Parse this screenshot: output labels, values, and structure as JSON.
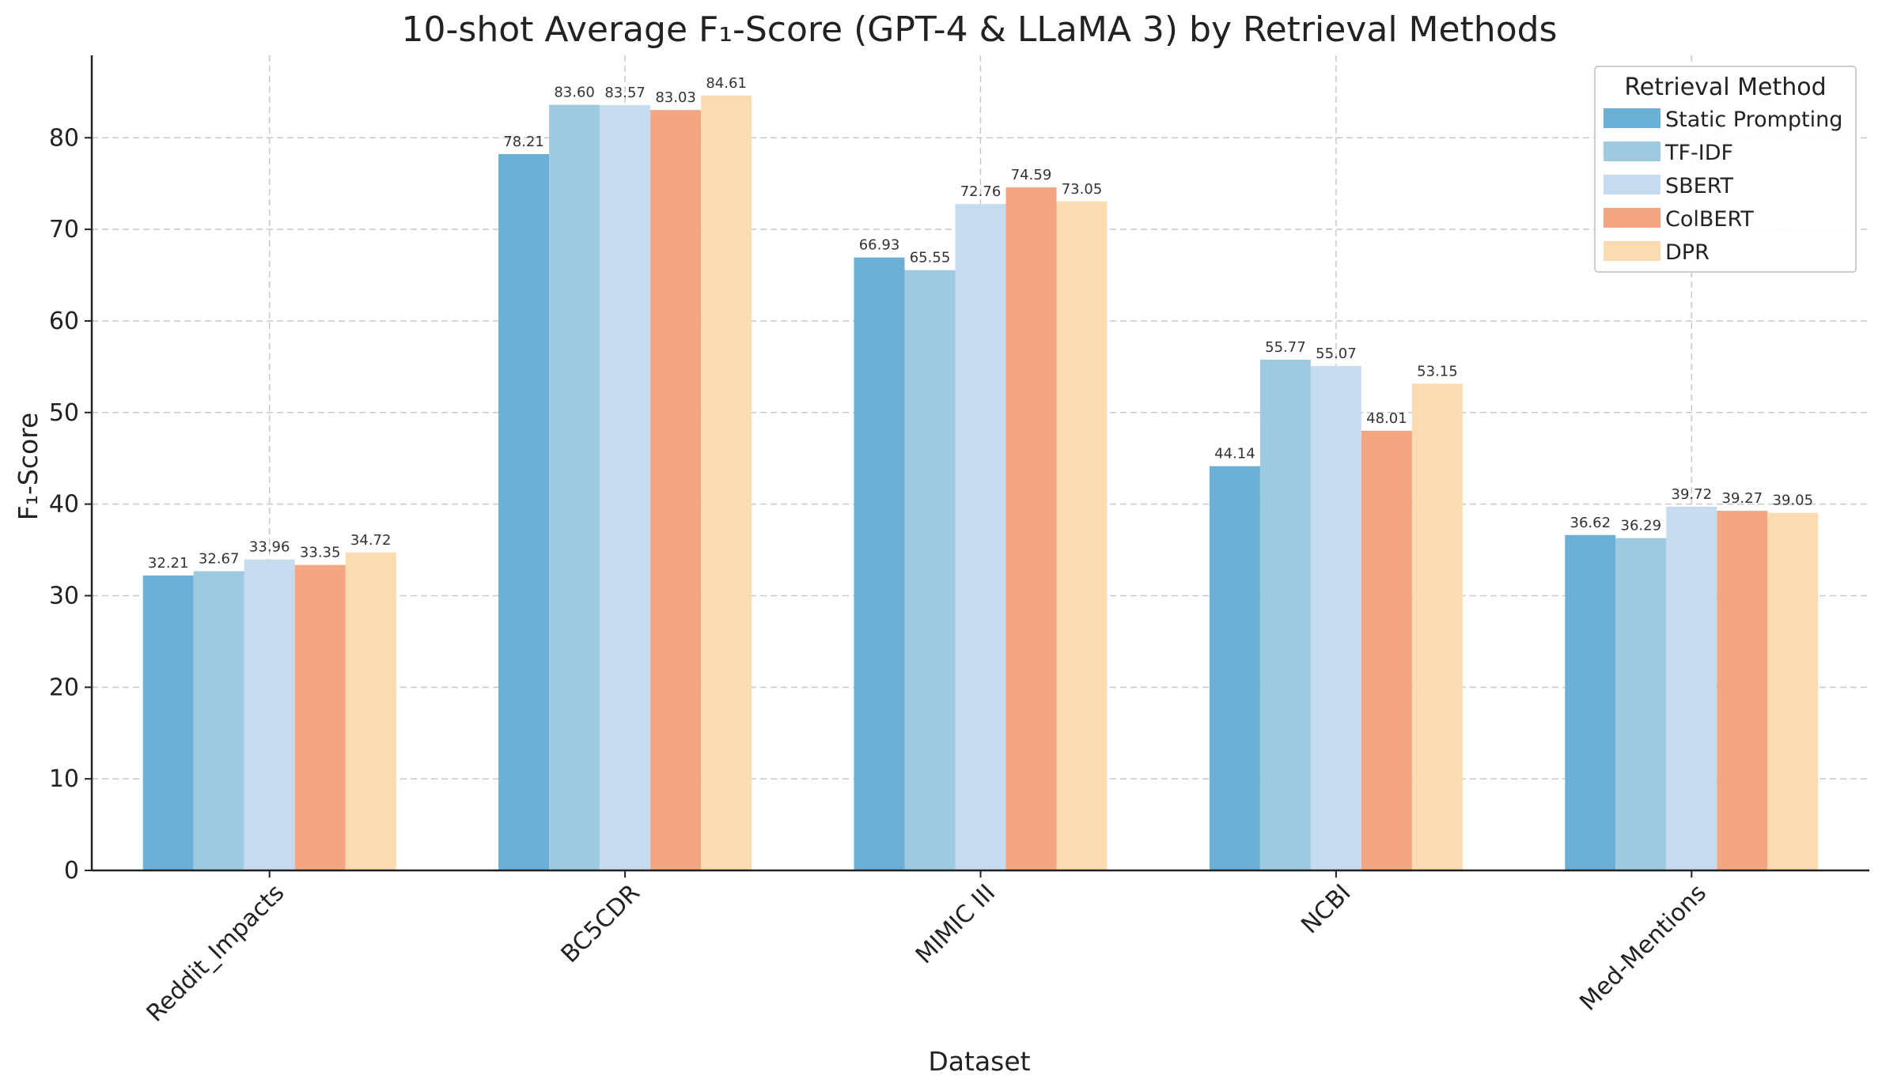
{
  "chart_data": {
    "type": "bar",
    "title": "10-shot Average F₁-Score (GPT-4 & LLaMA 3) by Retrieval Methods",
    "xlabel": "Dataset",
    "ylabel": "F₁-Score",
    "ylim": [
      0,
      89
    ],
    "yticks": [
      0,
      10,
      20,
      30,
      40,
      50,
      60,
      70,
      80
    ],
    "grid": true,
    "legend_title": "Retrieval Method",
    "legend_position": "top-right",
    "categories": [
      "Reddit_Impacts",
      "BC5CDR",
      "MIMIC III",
      "NCBI",
      "Med-Mentions"
    ],
    "series": [
      {
        "name": "Static Prompting",
        "color": "#6baed6",
        "values": [
          32.21,
          78.21,
          66.93,
          44.14,
          36.62
        ]
      },
      {
        "name": "TF-IDF",
        "color": "#9ecae1",
        "values": [
          32.67,
          83.6,
          65.55,
          55.77,
          36.29
        ]
      },
      {
        "name": "SBERT",
        "color": "#c6dbef",
        "values": [
          33.96,
          83.57,
          72.76,
          55.07,
          39.72
        ]
      },
      {
        "name": "ColBERT",
        "color": "#f4a582",
        "values": [
          33.35,
          83.03,
          74.59,
          48.01,
          39.27
        ]
      },
      {
        "name": "DPR",
        "color": "#fddbb1",
        "values": [
          34.72,
          84.61,
          73.05,
          53.15,
          39.05
        ]
      }
    ]
  }
}
